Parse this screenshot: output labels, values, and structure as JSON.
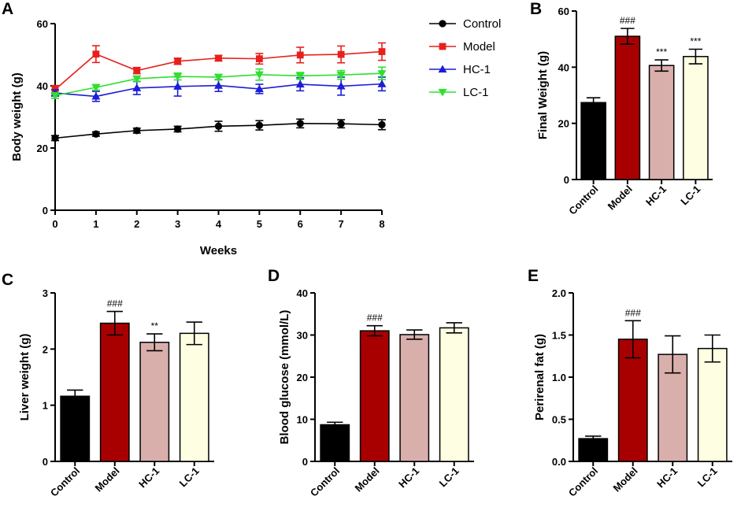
{
  "chart_data": [
    {
      "panel": "A",
      "type": "line",
      "xlabel": "Weeks",
      "ylabel": "Body  weight (g)",
      "x": [
        0,
        1,
        2,
        3,
        4,
        5,
        6,
        7,
        8
      ],
      "xticks": [
        "0",
        "1",
        "2",
        "3",
        "4",
        "5",
        "6",
        "7",
        "8"
      ],
      "xlim": [
        0,
        8
      ],
      "ylim": [
        0,
        60
      ],
      "yticks": [
        "0",
        "20",
        "40",
        "60"
      ],
      "legend": "top-right, outside",
      "series": [
        {
          "name": "Control",
          "color": "#000000",
          "marker": "circle",
          "values": [
            23.2,
            24.5,
            25.6,
            26.1,
            27.0,
            27.3,
            27.9,
            27.8,
            27.5
          ],
          "errors": [
            0.8,
            0.7,
            0.8,
            0.9,
            1.6,
            1.5,
            1.4,
            1.3,
            1.6
          ]
        },
        {
          "name": "Model",
          "color": "#e8201c",
          "marker": "square",
          "values": [
            38.8,
            50.2,
            44.9,
            47.9,
            48.9,
            48.7,
            49.9,
            50.1,
            51.0
          ],
          "errors": [
            1.3,
            2.7,
            1.0,
            1.0,
            0.9,
            1.7,
            2.5,
            2.7,
            2.8
          ]
        },
        {
          "name": "HC-1",
          "color": "#1d1dd8",
          "marker": "triangle-up",
          "values": [
            37.7,
            36.6,
            39.3,
            39.8,
            40.1,
            39.0,
            40.5,
            39.9,
            40.6
          ],
          "errors": [
            1.0,
            1.6,
            2.1,
            3.1,
            1.9,
            1.5,
            2.1,
            2.9,
            2.2
          ]
        },
        {
          "name": "LC-1",
          "color": "#2fe02f",
          "marker": "triangle-down",
          "values": [
            36.9,
            39.5,
            42.3,
            43.0,
            42.8,
            43.6,
            43.2,
            43.5,
            44.0
          ],
          "errors": [
            0.9,
            0.9,
            0.8,
            1.1,
            0.9,
            1.8,
            1.1,
            1.4,
            2.0
          ]
        }
      ]
    },
    {
      "panel": "B",
      "type": "bar",
      "ylabel": "Final Weight (g)",
      "categories": [
        "Control",
        "Model",
        "HC-1",
        "LC-1"
      ],
      "values": [
        27.4,
        51.0,
        40.6,
        43.8
      ],
      "errors": [
        1.7,
        2.8,
        2.0,
        2.6
      ],
      "annotations": [
        "",
        "###",
        "***",
        "***"
      ],
      "ylim": [
        0,
        60
      ],
      "yticks": [
        "0",
        "20",
        "40",
        "60"
      ]
    },
    {
      "panel": "C",
      "type": "bar",
      "ylabel": "Liver weight (g)",
      "categories": [
        "Control",
        "Model",
        "HC-1",
        "LC-1"
      ],
      "values": [
        1.16,
        2.46,
        2.12,
        2.28
      ],
      "errors": [
        0.11,
        0.21,
        0.15,
        0.2
      ],
      "annotations": [
        "",
        "###",
        "**",
        ""
      ],
      "ylim": [
        0,
        3
      ],
      "yticks": [
        "0",
        "1",
        "2",
        "3"
      ]
    },
    {
      "panel": "D",
      "type": "bar",
      "ylabel": "Blood glucose (mmol/L)",
      "categories": [
        "Control",
        "Model",
        "HC-1",
        "LC-1"
      ],
      "values": [
        8.7,
        31.0,
        30.1,
        31.7
      ],
      "errors": [
        0.6,
        1.2,
        1.1,
        1.2
      ],
      "annotations": [
        "",
        "###",
        "",
        ""
      ],
      "ylim": [
        0,
        40
      ],
      "yticks": [
        "0",
        "10",
        "20",
        "30",
        "40"
      ]
    },
    {
      "panel": "E",
      "type": "bar",
      "ylabel": "Perirenal fat (g)",
      "categories": [
        "Control",
        "Model",
        "HC-1",
        "LC-1"
      ],
      "values": [
        0.27,
        1.45,
        1.27,
        1.34
      ],
      "errors": [
        0.03,
        0.22,
        0.22,
        0.16
      ],
      "annotations": [
        "",
        "###",
        "",
        ""
      ],
      "ylim": [
        0,
        2.0
      ],
      "yticks": [
        "0.0",
        "0.5",
        "1.0",
        "1.5",
        "2.0"
      ]
    }
  ],
  "bar_colors": [
    "#000000",
    "#a80000",
    "#d9afac",
    "#fefee3"
  ]
}
